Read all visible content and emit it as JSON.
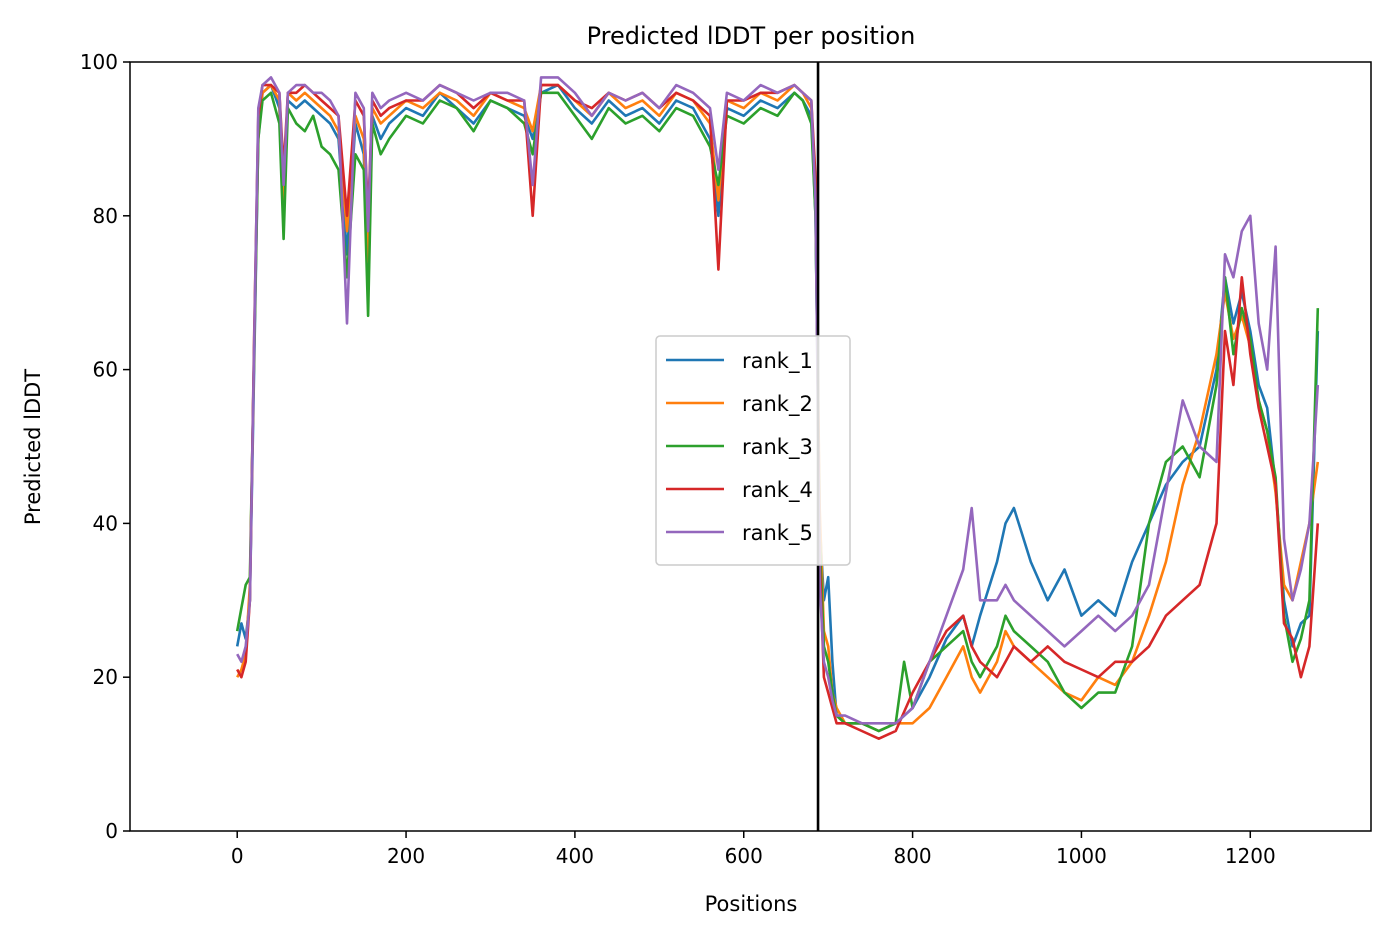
{
  "chart_data": {
    "type": "line",
    "title": "Predicted lDDT per position",
    "xlabel": "Positions",
    "ylabel": "Predicted lDDT",
    "xlim": [
      -127,
      1343
    ],
    "ylim": [
      0,
      100
    ],
    "xticks": [
      0,
      200,
      400,
      600,
      800,
      1000,
      1200
    ],
    "yticks": [
      0,
      20,
      40,
      60,
      80,
      100
    ],
    "grid": false,
    "legend_position": "center",
    "vline": {
      "x": 688,
      "color": "#000000"
    },
    "series": [
      {
        "name": "rank_1",
        "color": "#1f77b4",
        "x": [
          0,
          5,
          10,
          15,
          20,
          25,
          30,
          40,
          50,
          55,
          60,
          70,
          80,
          90,
          100,
          110,
          120,
          130,
          140,
          150,
          155,
          160,
          170,
          180,
          200,
          220,
          240,
          260,
          280,
          300,
          320,
          340,
          350,
          360,
          380,
          400,
          420,
          440,
          460,
          480,
          500,
          520,
          540,
          560,
          570,
          580,
          600,
          620,
          640,
          660,
          670,
          680,
          685,
          690,
          695,
          700,
          705,
          710,
          720,
          740,
          760,
          780,
          800,
          820,
          840,
          860,
          870,
          880,
          900,
          910,
          920,
          940,
          960,
          980,
          1000,
          1020,
          1040,
          1060,
          1080,
          1100,
          1120,
          1140,
          1160,
          1170,
          1180,
          1190,
          1200,
          1210,
          1220,
          1230,
          1240,
          1250,
          1260,
          1270,
          1280
        ],
        "values": [
          24,
          27,
          25,
          30,
          60,
          90,
          96,
          97,
          94,
          80,
          95,
          94,
          95,
          94,
          93,
          92,
          90,
          75,
          92,
          88,
          70,
          93,
          90,
          92,
          94,
          93,
          96,
          94,
          92,
          95,
          94,
          93,
          90,
          96,
          97,
          94,
          92,
          95,
          93,
          94,
          92,
          95,
          94,
          90,
          80,
          94,
          93,
          95,
          94,
          96,
          95,
          93,
          80,
          40,
          30,
          33,
          22,
          15,
          14,
          14,
          13,
          14,
          16,
          20,
          25,
          28,
          24,
          28,
          35,
          40,
          42,
          35,
          30,
          34,
          28,
          30,
          28,
          35,
          40,
          45,
          48,
          50,
          60,
          72,
          66,
          70,
          65,
          58,
          55,
          45,
          30,
          24,
          27,
          28,
          65
        ]
      },
      {
        "name": "rank_2",
        "color": "#ff7f0e",
        "x": [
          0,
          5,
          10,
          15,
          20,
          25,
          30,
          40,
          50,
          55,
          60,
          70,
          80,
          90,
          100,
          110,
          120,
          130,
          140,
          150,
          155,
          160,
          170,
          180,
          200,
          220,
          240,
          260,
          280,
          300,
          320,
          340,
          350,
          360,
          380,
          400,
          420,
          440,
          460,
          480,
          500,
          520,
          540,
          560,
          570,
          580,
          600,
          620,
          640,
          660,
          670,
          680,
          685,
          690,
          695,
          700,
          705,
          710,
          720,
          740,
          760,
          780,
          800,
          820,
          840,
          860,
          870,
          880,
          900,
          910,
          920,
          940,
          960,
          980,
          1000,
          1020,
          1040,
          1060,
          1080,
          1100,
          1120,
          1140,
          1160,
          1170,
          1180,
          1190,
          1200,
          1210,
          1220,
          1230,
          1240,
          1250,
          1260,
          1270,
          1280
        ],
        "values": [
          20,
          21,
          23,
          32,
          62,
          92,
          96,
          97,
          95,
          82,
          96,
          95,
          96,
          95,
          94,
          93,
          91,
          78,
          93,
          90,
          74,
          94,
          92,
          93,
          95,
          94,
          96,
          95,
          93,
          96,
          95,
          94,
          91,
          97,
          97,
          95,
          93,
          96,
          94,
          95,
          93,
          96,
          95,
          92,
          82,
          95,
          94,
          96,
          95,
          97,
          96,
          94,
          82,
          42,
          26,
          24,
          18,
          16,
          14,
          14,
          13,
          14,
          14,
          16,
          20,
          24,
          20,
          18,
          22,
          26,
          24,
          22,
          20,
          18,
          17,
          20,
          19,
          22,
          28,
          35,
          45,
          52,
          62,
          70,
          64,
          67,
          63,
          56,
          52,
          44,
          32,
          30,
          35,
          40,
          48
        ]
      },
      {
        "name": "rank_3",
        "color": "#2ca02c",
        "x": [
          0,
          5,
          10,
          15,
          20,
          25,
          30,
          40,
          50,
          55,
          60,
          70,
          80,
          90,
          100,
          110,
          120,
          130,
          140,
          150,
          155,
          160,
          170,
          180,
          200,
          220,
          240,
          260,
          280,
          300,
          320,
          340,
          350,
          360,
          380,
          400,
          420,
          440,
          460,
          480,
          500,
          520,
          540,
          560,
          570,
          580,
          600,
          620,
          640,
          660,
          670,
          680,
          685,
          690,
          695,
          700,
          705,
          710,
          720,
          740,
          760,
          780,
          790,
          800,
          820,
          840,
          860,
          870,
          880,
          900,
          910,
          920,
          940,
          960,
          980,
          1000,
          1020,
          1040,
          1060,
          1080,
          1100,
          1120,
          1140,
          1160,
          1170,
          1180,
          1190,
          1200,
          1210,
          1220,
          1230,
          1240,
          1250,
          1260,
          1270,
          1280
        ],
        "values": [
          26,
          29,
          32,
          33,
          62,
          90,
          95,
          96,
          92,
          77,
          94,
          92,
          91,
          93,
          89,
          88,
          86,
          72,
          88,
          86,
          67,
          92,
          88,
          90,
          93,
          92,
          95,
          94,
          91,
          95,
          94,
          92,
          88,
          96,
          96,
          93,
          90,
          94,
          92,
          93,
          91,
          94,
          93,
          89,
          84,
          93,
          92,
          94,
          93,
          96,
          95,
          92,
          80,
          38,
          24,
          22,
          18,
          15,
          14,
          14,
          13,
          14,
          22,
          16,
          22,
          24,
          26,
          22,
          20,
          24,
          28,
          26,
          24,
          22,
          18,
          16,
          18,
          18,
          24,
          40,
          48,
          50,
          46,
          58,
          72,
          62,
          68,
          64,
          56,
          52,
          46,
          28,
          22,
          25,
          30,
          68
        ]
      },
      {
        "name": "rank_4",
        "color": "#d62728",
        "x": [
          0,
          5,
          10,
          15,
          20,
          25,
          30,
          40,
          50,
          55,
          60,
          70,
          80,
          90,
          100,
          110,
          120,
          130,
          140,
          150,
          155,
          160,
          170,
          180,
          200,
          220,
          240,
          260,
          280,
          300,
          320,
          340,
          350,
          360,
          380,
          400,
          420,
          440,
          460,
          480,
          500,
          520,
          540,
          560,
          570,
          580,
          600,
          620,
          640,
          660,
          670,
          680,
          685,
          690,
          695,
          700,
          705,
          710,
          720,
          740,
          760,
          780,
          800,
          820,
          840,
          860,
          870,
          880,
          900,
          910,
          920,
          940,
          960,
          980,
          1000,
          1020,
          1040,
          1060,
          1080,
          1100,
          1120,
          1140,
          1160,
          1170,
          1180,
          1190,
          1200,
          1210,
          1220,
          1230,
          1240,
          1250,
          1260,
          1270,
          1280
        ],
        "values": [
          21,
          20,
          22,
          30,
          64,
          93,
          97,
          97,
          96,
          86,
          96,
          96,
          97,
          96,
          95,
          94,
          93,
          80,
          95,
          93,
          80,
          95,
          93,
          94,
          95,
          95,
          97,
          96,
          94,
          96,
          95,
          95,
          80,
          97,
          97,
          95,
          94,
          96,
          95,
          96,
          94,
          96,
          95,
          93,
          73,
          95,
          95,
          96,
          96,
          97,
          96,
          95,
          85,
          35,
          20,
          18,
          16,
          14,
          14,
          13,
          12,
          13,
          18,
          22,
          26,
          28,
          24,
          22,
          20,
          22,
          24,
          22,
          24,
          22,
          21,
          20,
          22,
          22,
          24,
          28,
          30,
          32,
          40,
          65,
          58,
          72,
          62,
          55,
          50,
          45,
          27,
          25,
          20,
          24,
          40
        ]
      },
      {
        "name": "rank_5",
        "color": "#9467bd",
        "x": [
          0,
          5,
          10,
          15,
          20,
          25,
          30,
          40,
          50,
          55,
          60,
          70,
          80,
          90,
          100,
          110,
          120,
          130,
          140,
          150,
          155,
          160,
          170,
          180,
          200,
          220,
          240,
          260,
          280,
          300,
          320,
          340,
          350,
          360,
          380,
          400,
          420,
          440,
          460,
          480,
          500,
          520,
          540,
          560,
          570,
          580,
          600,
          620,
          640,
          660,
          670,
          680,
          685,
          690,
          695,
          700,
          705,
          710,
          720,
          740,
          760,
          780,
          800,
          820,
          840,
          860,
          870,
          880,
          900,
          910,
          920,
          940,
          960,
          980,
          1000,
          1020,
          1040,
          1060,
          1080,
          1100,
          1120,
          1140,
          1160,
          1170,
          1180,
          1190,
          1200,
          1210,
          1220,
          1230,
          1240,
          1250,
          1260,
          1270,
          1280
        ],
        "values": [
          23,
          22,
          24,
          30,
          63,
          94,
          97,
          98,
          96,
          84,
          96,
          97,
          97,
          96,
          96,
          95,
          93,
          66,
          96,
          94,
          78,
          96,
          94,
          95,
          96,
          95,
          97,
          96,
          95,
          96,
          96,
          95,
          84,
          98,
          98,
          96,
          93,
          96,
          95,
          96,
          94,
          97,
          96,
          94,
          86,
          96,
          95,
          97,
          96,
          97,
          96,
          95,
          82,
          32,
          22,
          20,
          17,
          15,
          15,
          14,
          14,
          14,
          16,
          22,
          28,
          34,
          42,
          30,
          30,
          32,
          30,
          28,
          26,
          24,
          26,
          28,
          26,
          28,
          32,
          44,
          56,
          50,
          48,
          75,
          72,
          78,
          80,
          66,
          60,
          76,
          38,
          30,
          34,
          40,
          58
        ]
      }
    ]
  }
}
